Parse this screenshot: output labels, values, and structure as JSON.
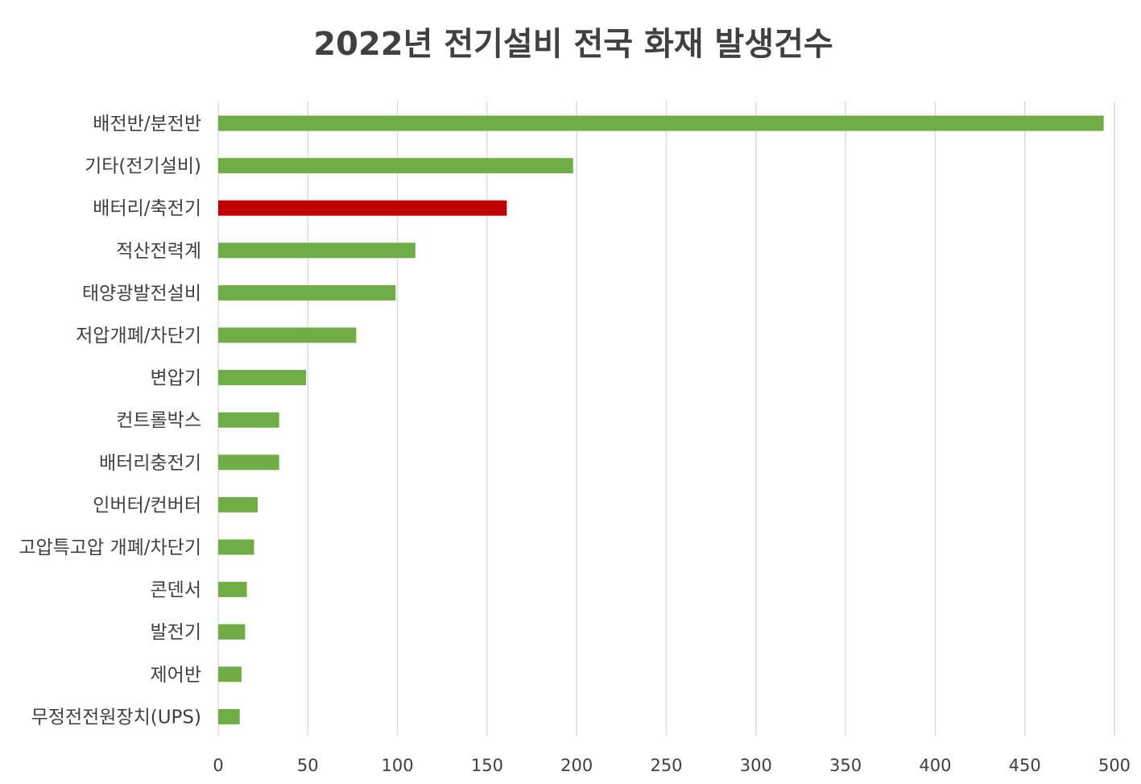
{
  "chart_data": {
    "type": "bar",
    "orientation": "horizontal",
    "title": "2022년 전기설비 전국 화재 발생건수",
    "xlabel": "",
    "ylabel": "",
    "xlim": [
      0,
      500
    ],
    "ticks": [
      "0",
      "50",
      "100",
      "150",
      "200",
      "250",
      "300",
      "350",
      "400",
      "450",
      "500"
    ],
    "tick_values": [
      0,
      50,
      100,
      150,
      200,
      250,
      300,
      350,
      400,
      450,
      500
    ],
    "grid": true,
    "legend": "none",
    "categories": [
      "배전반/분전반",
      "기타(전기설비)",
      "배터리/축전기",
      "적산전력계",
      "태양광발전설비",
      "저압개폐/차단기",
      "변압기",
      "컨트롤박스",
      "배터리충전기",
      "인버터/컨버터",
      "고압특고압 개폐/차단기",
      "콘덴서",
      "발전기",
      "제어반",
      "무정전전원장치(UPS)"
    ],
    "values": [
      494,
      198,
      161,
      110,
      99,
      77,
      49,
      34,
      34,
      22,
      20,
      16,
      15,
      13,
      12
    ],
    "colors": [
      "#70ad47",
      "#70ad47",
      "#c00000",
      "#70ad47",
      "#70ad47",
      "#70ad47",
      "#70ad47",
      "#70ad47",
      "#70ad47",
      "#70ad47",
      "#70ad47",
      "#70ad47",
      "#70ad47",
      "#70ad47",
      "#70ad47"
    ]
  }
}
